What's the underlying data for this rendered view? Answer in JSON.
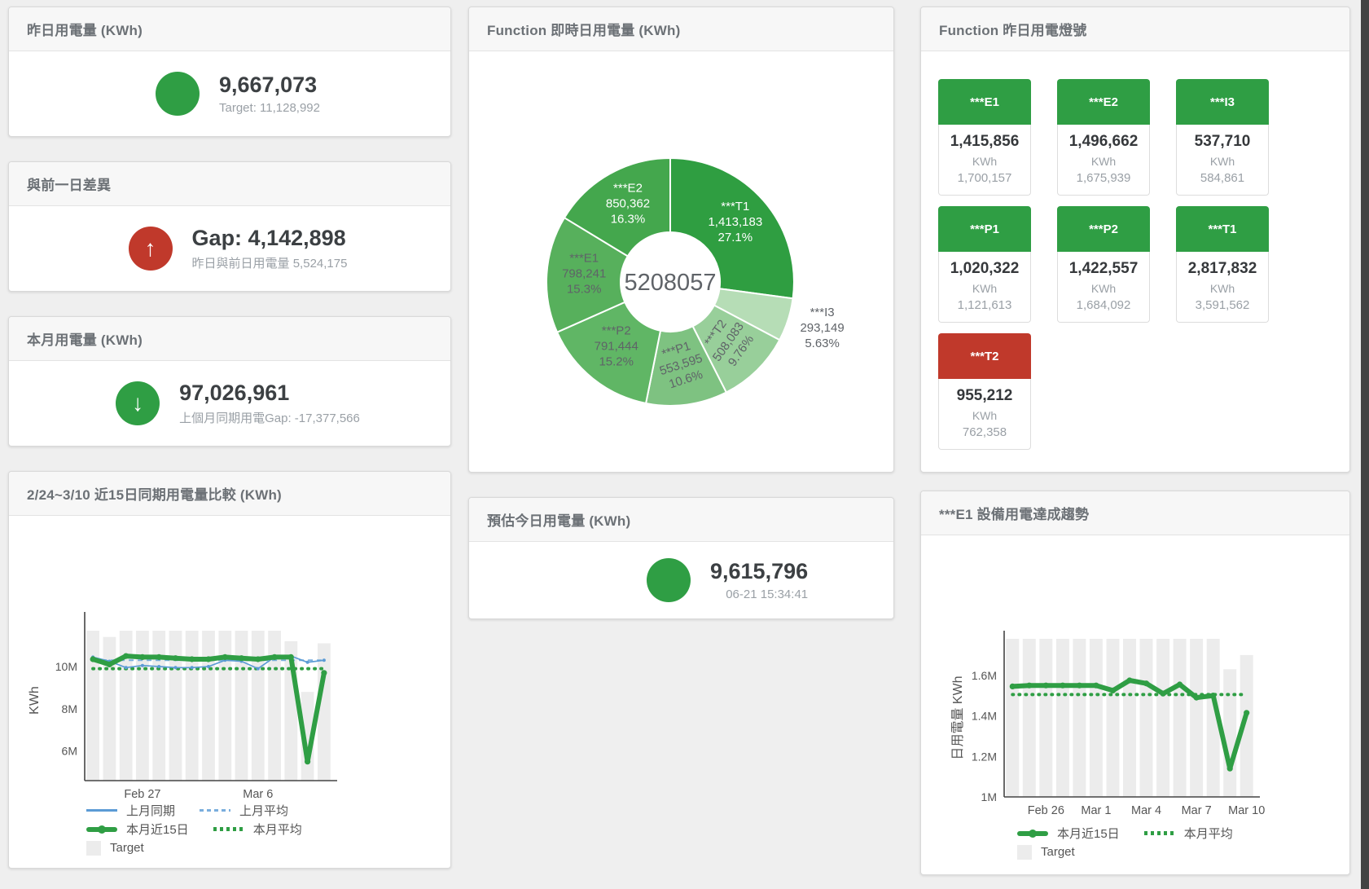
{
  "colors": {
    "green": "#2f9e44",
    "red": "#c0392b",
    "blue": "#5b9bd5",
    "blue_light": "#7aaedd",
    "bar_gray": "#ececec",
    "title_gray": "#6c7176",
    "value_dark": "#3c4043",
    "subtitle_gray": "#9aa0a6"
  },
  "panels": {
    "yesterday": {
      "title": "昨日用電量 (KWh)",
      "icon": "green-circle",
      "icon_glyph": "",
      "value": "9,667,073",
      "subtitle": "Target: 11,128,992"
    },
    "gap_prev_day": {
      "title": "與前一日差異",
      "icon": "red-arrow-up-circle",
      "icon_glyph": "↑",
      "value": "Gap: 4,142,898",
      "subtitle": "昨日與前日用電量 5,524,175"
    },
    "month": {
      "title": "本月用電量 (KWh)",
      "icon": "green-arrow-down-circle",
      "icon_glyph": "↓",
      "value": "97,026,961",
      "subtitle": "上個月同期用電Gap: -17,377,566"
    },
    "estimate_today": {
      "title": "預估今日用電量 (KWh)",
      "icon": "green-circle",
      "icon_glyph": "",
      "value": "9,615,796",
      "subtitle": "06-21 15:34:41"
    },
    "donut_panel": {
      "title": "Function 即時日用電量 (KWh)"
    },
    "lights": {
      "title": "Function 昨日用電燈號",
      "unit": "KWh",
      "tiles": [
        {
          "name": "***E1",
          "value": "1,415,856",
          "unit": "KWh",
          "target": "1,700,157",
          "status": "green"
        },
        {
          "name": "***E2",
          "value": "1,496,662",
          "unit": "KWh",
          "target": "1,675,939",
          "status": "green"
        },
        {
          "name": "***I3",
          "value": "537,710",
          "unit": "KWh",
          "target": "584,861",
          "status": "green"
        },
        {
          "name": "***P1",
          "value": "1,020,322",
          "unit": "KWh",
          "target": "1,121,613",
          "status": "green"
        },
        {
          "name": "***P2",
          "value": "1,422,557",
          "unit": "KWh",
          "target": "1,684,092",
          "status": "green"
        },
        {
          "name": "***T1",
          "value": "2,817,832",
          "unit": "KWh",
          "target": "3,591,562",
          "status": "green"
        },
        {
          "name": "***T2",
          "value": "955,212",
          "unit": "KWh",
          "target": "762,358",
          "status": "red"
        }
      ]
    },
    "compare_panel": {
      "title": "2/24~3/10 近15日同期用電量比較 (KWh)"
    },
    "e1_panel": {
      "title": "***E1 設備用電達成趨勢"
    }
  },
  "chart_data": [
    {
      "type": "donut",
      "title": "Function 即時日用電量 (KWh)",
      "center_total": "5208057",
      "slices": [
        {
          "name": "***T1",
          "value": "1,413,183",
          "pct": "27.1%",
          "num": 1413183,
          "color": "#2f9e41",
          "label_color": "#ffffff",
          "label_pos": "inside",
          "label_rotate": 0
        },
        {
          "name": "***I3",
          "value": "293,149",
          "pct": "5.63%",
          "num": 293149,
          "color": "#b6ddb6",
          "label_color": "#5f6368",
          "label_pos": "outside",
          "label_rotate": 0
        },
        {
          "name": "***T2",
          "value": "508,083",
          "pct": "9.76%",
          "num": 508083,
          "color": "#98cf9a",
          "label_color": "#5f6368",
          "label_pos": "inside",
          "label_rotate": -55
        },
        {
          "name": "***P1",
          "value": "553,595",
          "pct": "10.6%",
          "num": 553595,
          "color": "#7ec281",
          "label_color": "#5f6368",
          "label_pos": "inside",
          "label_rotate": -18
        },
        {
          "name": "***P2",
          "value": "791,444",
          "pct": "15.2%",
          "num": 791444,
          "color": "#60b665",
          "label_color": "#5f6368",
          "label_pos": "inside",
          "label_rotate": 0
        },
        {
          "name": "***E1",
          "value": "798,241",
          "pct": "15.3%",
          "num": 798241,
          "color": "#57b05c",
          "label_color": "#5f6368",
          "label_pos": "inside",
          "label_rotate": 0
        },
        {
          "name": "***E2",
          "value": "850,362",
          "pct": "16.3%",
          "num": 850362,
          "color": "#44a74d",
          "label_color": "#ffffff",
          "label_pos": "inside",
          "label_rotate": 0
        }
      ]
    },
    {
      "type": "line+bar",
      "title": "2/24~3/10 近15日同期用電量比較 (KWh)",
      "ylabel": "KWh",
      "categories": [
        "2/24",
        "2/25",
        "2/26",
        "2/27",
        "2/28",
        "3/1",
        "3/2",
        "3/3",
        "3/4",
        "3/5",
        "3/6",
        "3/7",
        "3/8",
        "3/9",
        "3/10"
      ],
      "x_ticks": [
        {
          "i": 3,
          "label": "Feb 27"
        },
        {
          "i": 10,
          "label": "Mar 6"
        }
      ],
      "y_ticks": [
        {
          "v": 6000000,
          "label": "6M"
        },
        {
          "v": 8000000,
          "label": "8M"
        },
        {
          "v": 10000000,
          "label": "10M"
        }
      ],
      "y_range": [
        4600000,
        12200000
      ],
      "target_bars": {
        "name": "Target",
        "color": "#ececec",
        "values": [
          11700000,
          11400000,
          11700000,
          11700000,
          11700000,
          11700000,
          11700000,
          11700000,
          11700000,
          11700000,
          11700000,
          11700000,
          11200000,
          8800000,
          11100000
        ]
      },
      "series": [
        {
          "name": "上月平均",
          "style": "dashed",
          "width": 2,
          "color": "#7aaedd",
          "markers": false,
          "values": [
            10300000,
            10300000,
            10300000,
            10300000,
            10300000,
            10300000,
            10300000,
            10300000,
            10300000,
            10300000,
            10300000,
            10300000,
            10300000,
            10300000,
            10300000
          ]
        },
        {
          "name": "本月平均",
          "style": "dotted",
          "width": 4,
          "color": "#2f9e44",
          "markers": false,
          "values": [
            9900000,
            9900000,
            9900000,
            9900000,
            9900000,
            9900000,
            9900000,
            9900000,
            9900000,
            9900000,
            9900000,
            9900000,
            9900000,
            9900000,
            9900000
          ]
        },
        {
          "name": "上月同期",
          "style": "solid",
          "width": 1.7,
          "color": "#5b9bd5",
          "markers": true,
          "values": [
            10450000,
            10250000,
            9950000,
            10050000,
            10000000,
            9950000,
            9950000,
            10000000,
            10300000,
            10250000,
            9900000,
            10450000,
            10500000,
            10200000,
            10300000
          ]
        },
        {
          "name": "本月近15日",
          "style": "solid",
          "width": 6,
          "color": "#2f9e44",
          "markers": true,
          "values": [
            10350000,
            10100000,
            10500000,
            10450000,
            10450000,
            10400000,
            10350000,
            10350000,
            10450000,
            10400000,
            10350000,
            10450000,
            10450000,
            5500000,
            9700000
          ]
        }
      ]
    },
    {
      "type": "line+bar",
      "title": "***E1 設備用電達成趨勢",
      "ylabel": "日用電量 KWh",
      "categories": [
        "2/24",
        "2/25",
        "2/26",
        "2/27",
        "2/28",
        "3/1",
        "3/2",
        "3/3",
        "3/4",
        "3/5",
        "3/6",
        "3/7",
        "3/8",
        "3/9",
        "3/10"
      ],
      "x_ticks": [
        {
          "i": 2,
          "label": "Feb 26"
        },
        {
          "i": 5,
          "label": "Mar 1"
        },
        {
          "i": 8,
          "label": "Mar 4"
        },
        {
          "i": 11,
          "label": "Mar 7"
        },
        {
          "i": 14,
          "label": "Mar 10"
        }
      ],
      "y_ticks": [
        {
          "v": 1000000,
          "label": "1M"
        },
        {
          "v": 1200000,
          "label": "1.2M"
        },
        {
          "v": 1400000,
          "label": "1.4M"
        },
        {
          "v": 1600000,
          "label": "1.6M"
        }
      ],
      "y_range": [
        1000000,
        1780000
      ],
      "target_bars": {
        "name": "Target",
        "color": "#ececec",
        "values": [
          1780000,
          1780000,
          1780000,
          1780000,
          1780000,
          1780000,
          1780000,
          1780000,
          1780000,
          1780000,
          1780000,
          1780000,
          1780000,
          1630000,
          1700000
        ]
      },
      "series": [
        {
          "name": "本月平均",
          "style": "dotted",
          "width": 4,
          "color": "#2f9e44",
          "markers": false,
          "values": [
            1505000,
            1505000,
            1505000,
            1505000,
            1505000,
            1505000,
            1505000,
            1505000,
            1505000,
            1505000,
            1505000,
            1505000,
            1505000,
            1505000,
            1505000
          ]
        },
        {
          "name": "本月近15日",
          "style": "solid",
          "width": 6,
          "color": "#2f9e44",
          "markers": true,
          "values": [
            1545000,
            1550000,
            1550000,
            1550000,
            1550000,
            1550000,
            1525000,
            1575000,
            1560000,
            1510000,
            1555000,
            1490000,
            1500000,
            1140000,
            1415000
          ]
        }
      ]
    }
  ]
}
